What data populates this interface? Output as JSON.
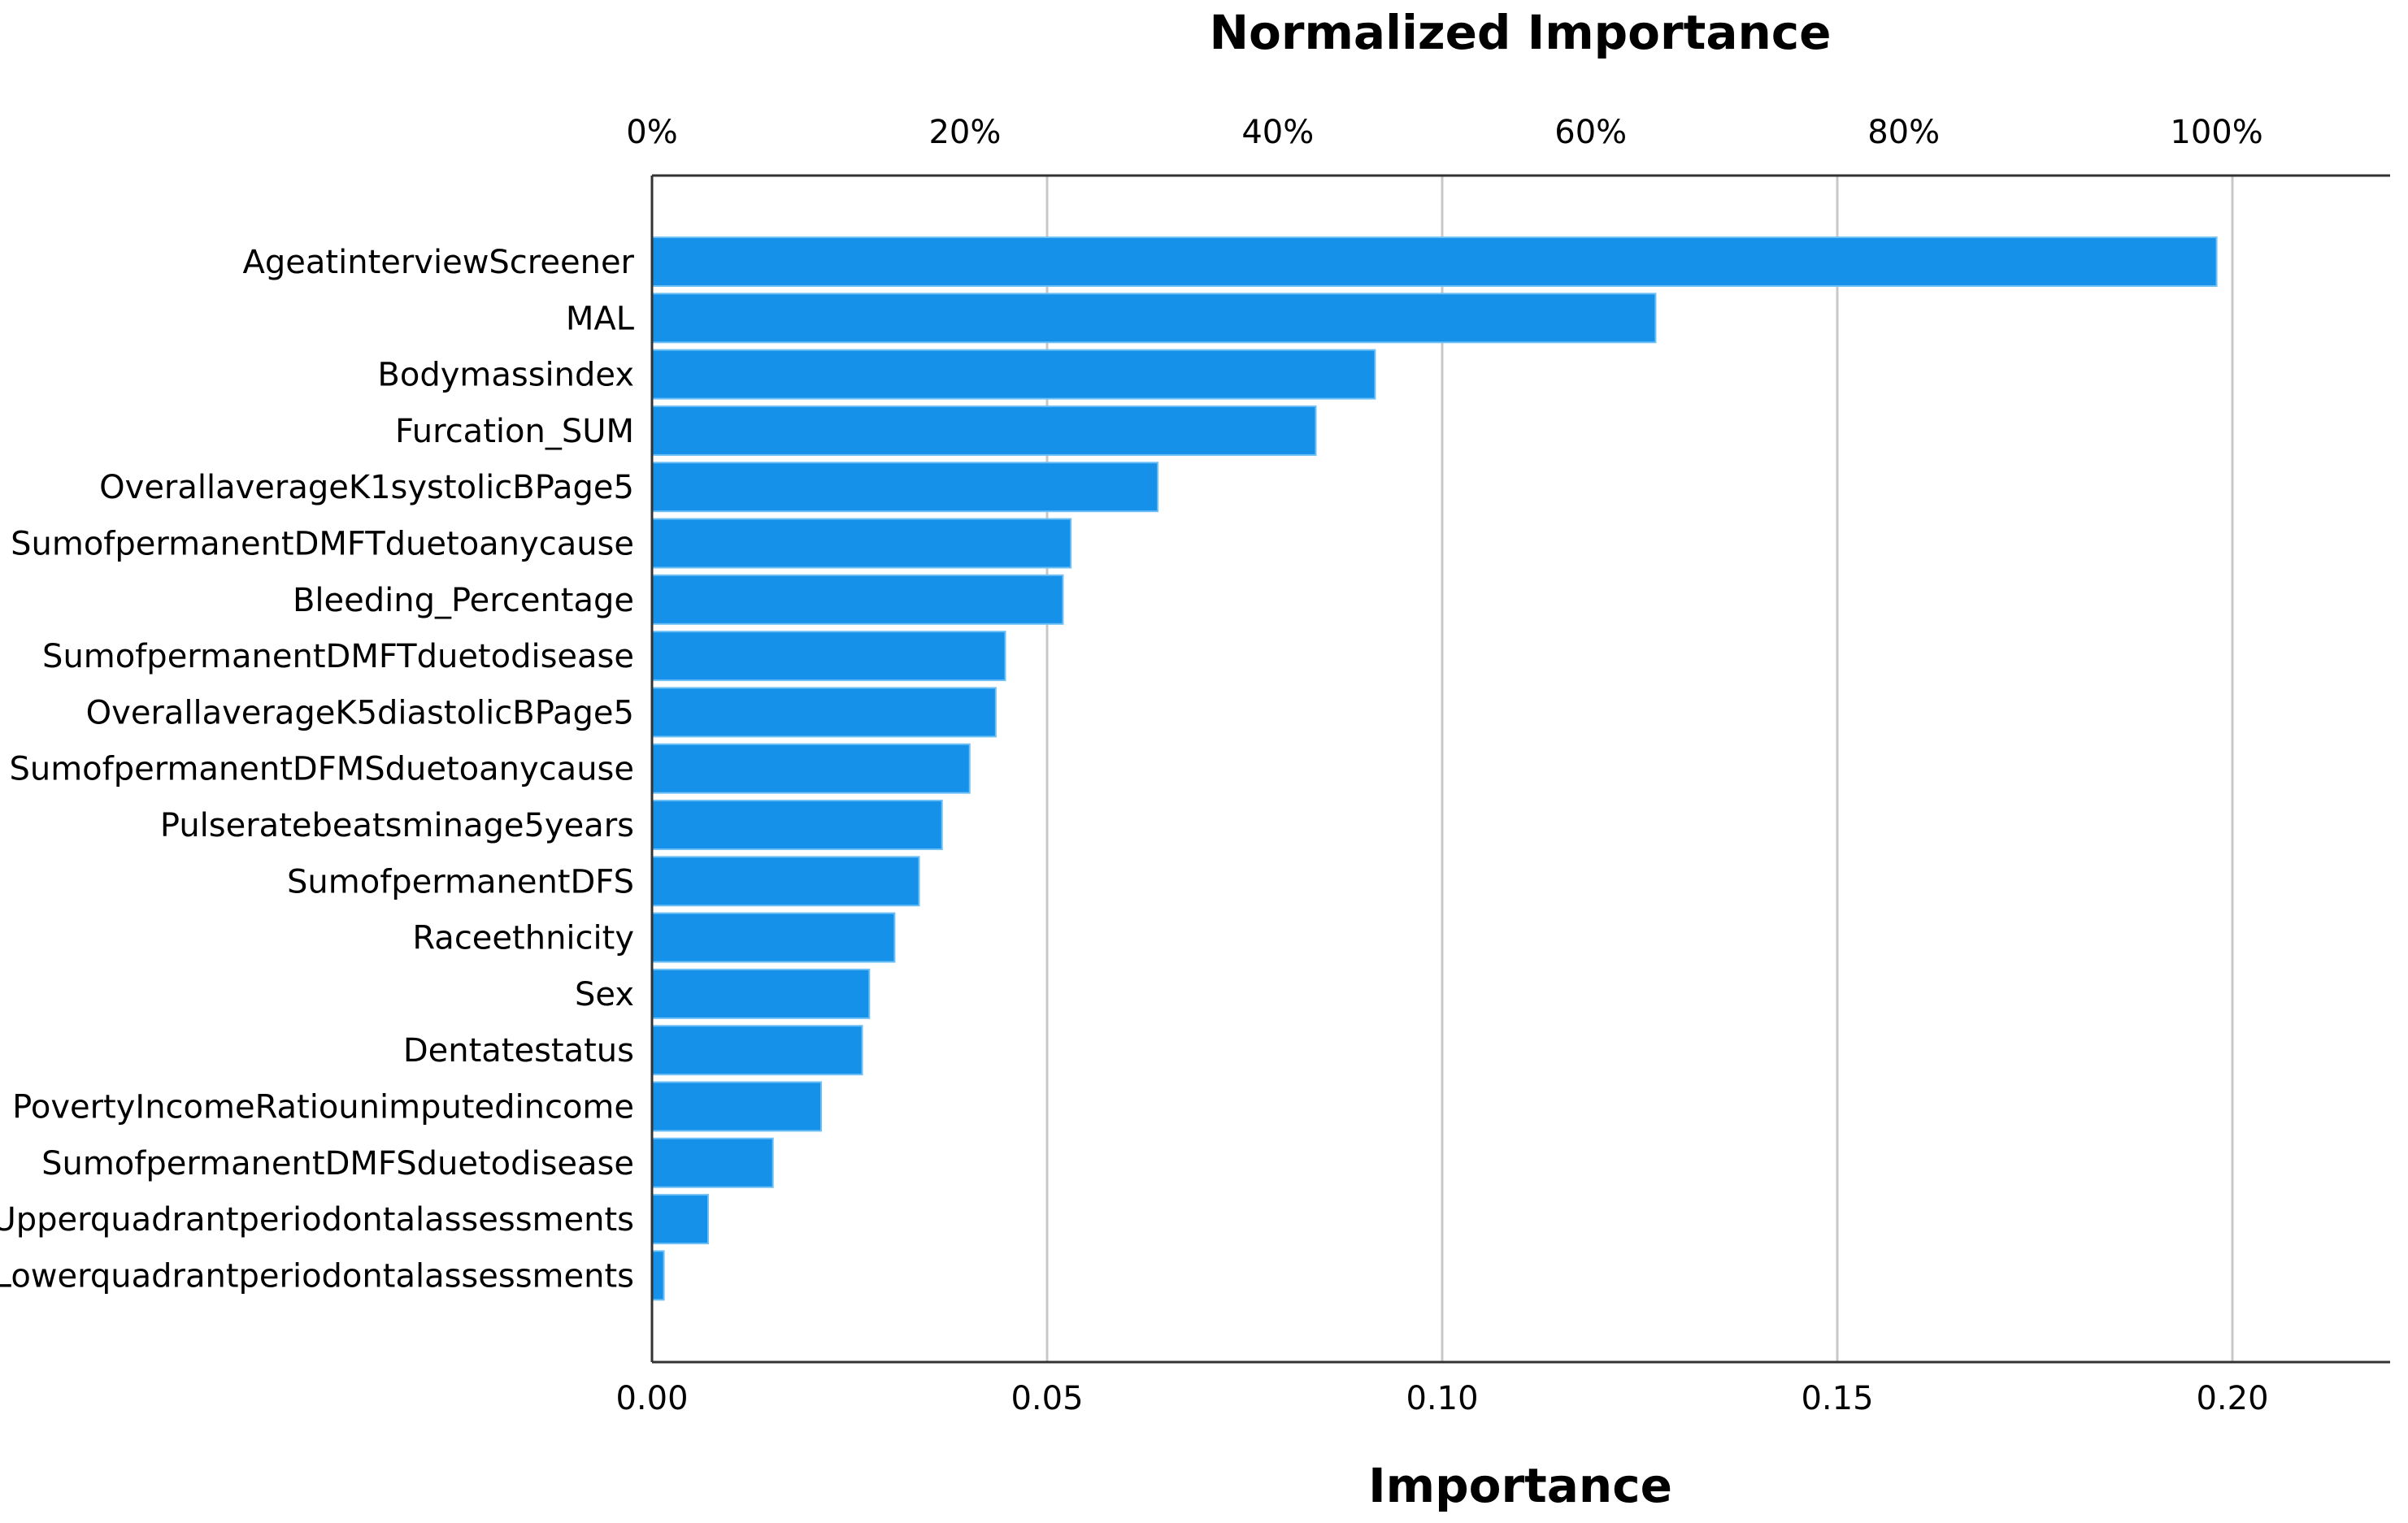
{
  "chart_data": {
    "type": "bar",
    "orientation": "horizontal",
    "title": "Normalized Importance",
    "xlabel": "Importance",
    "ylabel": "",
    "xlim": [
      0,
      0.22
    ],
    "bottom_ticks": [
      "0.00",
      "0.05",
      "0.10",
      "0.15",
      "0.20"
    ],
    "bottom_tick_values": [
      0,
      0.05,
      0.1,
      0.15,
      0.2
    ],
    "top_ticks": [
      "0%",
      "20%",
      "40%",
      "60%",
      "80%",
      "100%"
    ],
    "top_tick_values": [
      0,
      20,
      40,
      60,
      80,
      100
    ],
    "normalization_max": 0.198,
    "grid": true,
    "bar_color": "#1591EA",
    "bar_edge_color": "#6EC0F5",
    "categories": [
      "AgeatinterviewScreener",
      "MAL",
      "Bodymassindex",
      "Furcation_SUM",
      "OverallaverageK1systolicBPage5",
      "SumofpermanentDMFTduetoanycause",
      "Bleeding_Percentage",
      "SumofpermanentDMFTduetodisease",
      "OverallaverageK5diastolicBPage5",
      "SumofpermanentDFMSduetoanycause",
      "Pulseratebeatsminage5years",
      "SumofpermanentDFS",
      "Raceethnicity",
      "Sex",
      "Dentatestatus",
      "PovertyIncomeRatiounimputedincome",
      "SumofpermanentDMFSduetodisease",
      "Upperquadrantperiodontalassessments",
      "Lowerquadrantperiodontalassessments"
    ],
    "values": [
      0.198,
      0.127,
      0.0915,
      0.084,
      0.064,
      0.053,
      0.052,
      0.0447,
      0.0435,
      0.0402,
      0.0367,
      0.0338,
      0.0307,
      0.0275,
      0.0266,
      0.0214,
      0.0153,
      0.0071,
      0.0015
    ]
  }
}
